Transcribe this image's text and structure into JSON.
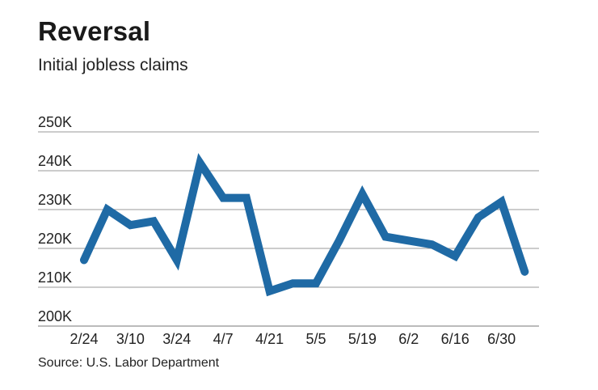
{
  "title": "Reversal",
  "subtitle": "Initial jobless claims",
  "source": "Source: U.S. Labor Department",
  "chart_data": {
    "type": "line",
    "title": "Reversal",
    "subtitle": "Initial jobless claims",
    "xlabel": "",
    "ylabel": "",
    "ylim": [
      200000,
      250000
    ],
    "yticks": [
      {
        "value": 250000,
        "label": "250K"
      },
      {
        "value": 240000,
        "label": "240K"
      },
      {
        "value": 230000,
        "label": "230K"
      },
      {
        "value": 220000,
        "label": "220K"
      },
      {
        "value": 210000,
        "label": "210K"
      },
      {
        "value": 200000,
        "label": "200K"
      }
    ],
    "xtick_labels": [
      "2/24",
      "3/10",
      "3/24",
      "4/7",
      "4/21",
      "5/5",
      "5/19",
      "6/2",
      "6/16",
      "6/30"
    ],
    "grid": true,
    "line_color": "#1f6aa5",
    "x": [
      "2/24",
      "3/3",
      "3/10",
      "3/17",
      "3/24",
      "3/31",
      "4/7",
      "4/14",
      "4/21",
      "4/28",
      "5/5",
      "5/12",
      "5/19",
      "5/26",
      "6/2",
      "6/9",
      "6/16",
      "6/23",
      "6/30",
      "7/7"
    ],
    "values": [
      217000,
      230000,
      226000,
      227000,
      217000,
      242000,
      233000,
      233000,
      209000,
      211000,
      211000,
      222000,
      234000,
      223000,
      222000,
      221000,
      218000,
      228000,
      232000,
      214000
    ]
  }
}
